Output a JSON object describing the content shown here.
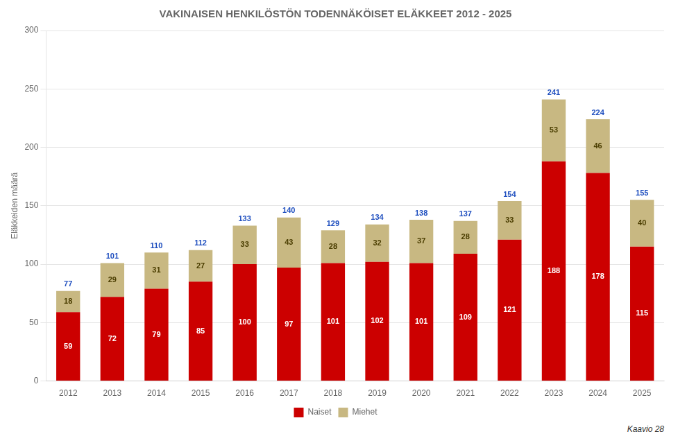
{
  "chart_data": {
    "type": "bar",
    "stacked": true,
    "title": "VAKINAISEN HENKILÖSTÖN TODENNÄKÖISET ELÄKKEET 2012 - 2025",
    "y_label": "Eläkkeiden määrä",
    "annotation": "Kaavio 28",
    "categories": [
      "2012",
      "2013",
      "2014",
      "2015",
      "2016",
      "2017",
      "2018",
      "2019",
      "2020",
      "2021",
      "2022",
      "2023",
      "2024",
      "2025"
    ],
    "series": [
      {
        "name": "Naiset",
        "color": "#CC0000",
        "values": [
          59,
          72,
          79,
          85,
          100,
          97,
          101,
          102,
          101,
          109,
          121,
          188,
          178,
          115
        ]
      },
      {
        "name": "Miehet",
        "color": "#C8B882",
        "values": [
          18,
          29,
          31,
          27,
          33,
          43,
          28,
          32,
          37,
          28,
          33,
          53,
          46,
          40
        ]
      }
    ],
    "totals": [
      77,
      101,
      110,
      112,
      133,
      140,
      129,
      134,
      138,
      137,
      154,
      241,
      224,
      155
    ],
    "data_labels": true,
    "ylim": [
      0,
      300
    ],
    "yticks": [
      0,
      50,
      100,
      150,
      200,
      250,
      300
    ],
    "grid": true,
    "legend": "bottom"
  }
}
